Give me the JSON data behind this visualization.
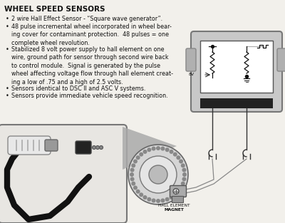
{
  "title": "WHEEL SPEED SENSORS",
  "background_color": "#f2f0eb",
  "text_color": "#111111",
  "bullet_points": [
    "2 wire Hall Effect Sensor - “Square wave generator”.",
    "48 pulse incremental wheel incorporated in wheel bear-\ning cover for contaminant protection.  48 pulses = one\ncomplete wheel revolution.",
    "Stabilized 8 volt power supply to hall element on one\nwire, ground path for sensor through second wire back\nto control module.  Signal is generated by the pulse\nwheel affecting voltage flow through hall element creat-\ning a low of .75 and a high of 2.5 volts.",
    "Sensors identical to DSC II and ASC V systems.",
    "Sensors provide immediate vehicle speed recognition."
  ],
  "label_hall": "HALL ELEMENT",
  "label_magnet": "MAGNET",
  "label_8v": "8V"
}
